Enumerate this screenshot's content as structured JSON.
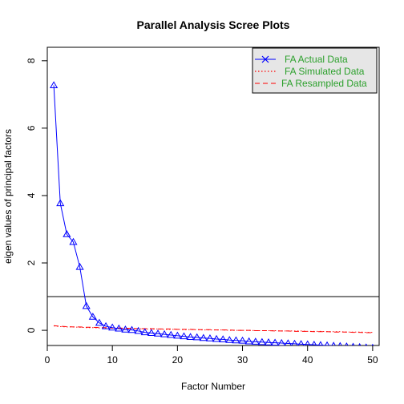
{
  "chart_data": {
    "type": "line",
    "title": "Parallel Analysis Scree Plots",
    "xlabel": "Factor Number",
    "ylabel": "eigen values of principal factors",
    "xlim": [
      0,
      51
    ],
    "ylim": [
      -0.45,
      8.4
    ],
    "x_ticks": [
      0,
      10,
      20,
      30,
      40,
      50
    ],
    "y_ticks": [
      0,
      2,
      4,
      6,
      8
    ],
    "x_tick_labels": [
      "0",
      "10",
      "20",
      "30",
      "40",
      "50"
    ],
    "y_tick_labels": [
      "0",
      "2",
      "4",
      "6",
      "8"
    ],
    "grid": false,
    "legend_position": "top-right",
    "reference_line": {
      "y": 1
    },
    "series": [
      {
        "name": "FA  Actual Data",
        "color": "#0000ff",
        "line_style": "solid",
        "marker": "triangle",
        "legend_marker": "x",
        "x": [
          1,
          2,
          3,
          4,
          5,
          6,
          7,
          8,
          9,
          10,
          11,
          12,
          13,
          14,
          15,
          16,
          17,
          18,
          19,
          20,
          21,
          22,
          23,
          24,
          25,
          26,
          27,
          28,
          29,
          30,
          31,
          32,
          33,
          34,
          35,
          36,
          37,
          38,
          39,
          40,
          41,
          42,
          43,
          44,
          45,
          46,
          47,
          48,
          49,
          50
        ],
        "values": [
          7.27,
          3.77,
          2.85,
          2.62,
          1.88,
          0.72,
          0.4,
          0.22,
          0.12,
          0.08,
          0.05,
          0.02,
          0.01,
          -0.02,
          -0.06,
          -0.08,
          -0.1,
          -0.12,
          -0.14,
          -0.16,
          -0.18,
          -0.2,
          -0.21,
          -0.23,
          -0.24,
          -0.26,
          -0.27,
          -0.29,
          -0.3,
          -0.31,
          -0.33,
          -0.34,
          -0.35,
          -0.36,
          -0.37,
          -0.38,
          -0.39,
          -0.4,
          -0.41,
          -0.42,
          -0.43,
          -0.44,
          -0.45,
          -0.46,
          -0.47,
          -0.48,
          -0.49,
          -0.5,
          -0.51,
          -0.52
        ]
      },
      {
        "name": "FA  Simulated Data",
        "color": "#ff0000",
        "line_style": "dotted",
        "x": [
          1,
          2,
          3,
          4,
          5,
          6,
          7,
          8,
          9,
          10,
          11,
          12,
          13,
          14,
          15,
          16,
          17,
          18,
          19,
          20,
          21,
          22,
          23,
          24,
          25,
          26,
          27,
          28,
          29,
          30,
          31,
          32,
          33,
          34,
          35,
          36,
          37,
          38,
          39,
          40,
          41,
          42,
          43,
          44,
          45,
          46,
          47,
          48,
          49,
          50
        ],
        "values": [
          0.13,
          0.11,
          0.1,
          0.1,
          0.09,
          0.08,
          0.08,
          0.07,
          0.07,
          0.06,
          0.06,
          0.05,
          0.05,
          0.05,
          0.04,
          0.04,
          0.04,
          0.03,
          0.03,
          0.03,
          0.02,
          0.02,
          0.02,
          0.01,
          0.01,
          0.01,
          0.01,
          0.0,
          0.0,
          0.0,
          0.0,
          -0.01,
          -0.01,
          -0.01,
          -0.01,
          -0.02,
          -0.02,
          -0.02,
          -0.02,
          -0.03,
          -0.03,
          -0.03,
          -0.04,
          -0.04,
          -0.04,
          -0.05,
          -0.05,
          -0.05,
          -0.06,
          -0.06
        ]
      },
      {
        "name": "FA  Resampled Data",
        "color": "#ff0000",
        "line_style": "dashed",
        "x": [
          1,
          2,
          3,
          4,
          5,
          6,
          7,
          8,
          9,
          10,
          11,
          12,
          13,
          14,
          15,
          16,
          17,
          18,
          19,
          20,
          21,
          22,
          23,
          24,
          25,
          26,
          27,
          28,
          29,
          30,
          31,
          32,
          33,
          34,
          35,
          36,
          37,
          38,
          39,
          40,
          41,
          42,
          43,
          44,
          45,
          46,
          47,
          48,
          49,
          50
        ],
        "values": [
          0.14,
          0.12,
          0.11,
          0.1,
          0.1,
          0.09,
          0.09,
          0.08,
          0.08,
          0.07,
          0.07,
          0.06,
          0.06,
          0.05,
          0.05,
          0.05,
          0.04,
          0.04,
          0.04,
          0.03,
          0.03,
          0.03,
          0.02,
          0.02,
          0.02,
          0.01,
          0.01,
          0.01,
          0.0,
          0.0,
          0.0,
          -0.01,
          -0.01,
          -0.01,
          -0.02,
          -0.02,
          -0.02,
          -0.03,
          -0.03,
          -0.03,
          -0.04,
          -0.04,
          -0.04,
          -0.05,
          -0.05,
          -0.05,
          -0.06,
          -0.06,
          -0.07,
          -0.07
        ]
      }
    ],
    "legend_background": "#e6e6e6",
    "legend_text_color": "#2ca02c"
  }
}
